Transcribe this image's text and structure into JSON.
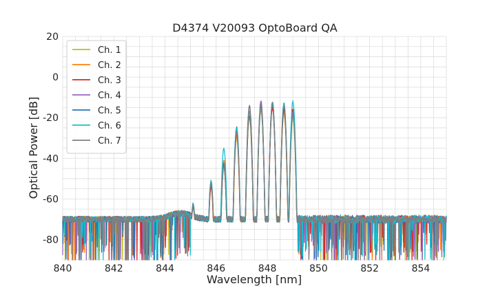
{
  "chart_data": {
    "type": "line",
    "title": "D4374 V20093 OptoBoard QA",
    "xlabel": "Wavelength [nm]",
    "ylabel": "Optical Power [dB]",
    "xlim": [
      840,
      855
    ],
    "ylim": [
      -90,
      20
    ],
    "xticks": [
      840,
      842,
      844,
      846,
      848,
      850,
      852,
      854
    ],
    "yticks": [
      -80,
      -60,
      -40,
      -20,
      0,
      20
    ],
    "grid": true,
    "legend_position": "top-left",
    "noise_floor": -70,
    "series": [
      {
        "name": "Ch. 1",
        "color": "#bcbd22",
        "peaks": [
          [
            845.1,
            -63
          ],
          [
            845.8,
            -53
          ],
          [
            846.3,
            -44
          ],
          [
            846.8,
            -30
          ],
          [
            847.3,
            -20
          ],
          [
            847.75,
            -16
          ],
          [
            848.2,
            -14
          ],
          [
            848.65,
            -18
          ],
          [
            849.0,
            -20
          ]
        ]
      },
      {
        "name": "Ch. 2",
        "color": "#ff7f0e",
        "peaks": [
          [
            845.1,
            -64
          ],
          [
            845.8,
            -55
          ],
          [
            846.3,
            -41
          ],
          [
            846.8,
            -29
          ],
          [
            847.3,
            -19
          ],
          [
            847.75,
            -16
          ],
          [
            848.2,
            -15
          ],
          [
            848.65,
            -17
          ],
          [
            849.0,
            -16
          ]
        ]
      },
      {
        "name": "Ch. 3",
        "color": "#d62728",
        "peaks": [
          [
            845.1,
            -64
          ],
          [
            845.8,
            -54
          ],
          [
            846.3,
            -44
          ],
          [
            846.8,
            -28
          ],
          [
            847.3,
            -19
          ],
          [
            847.75,
            -15
          ],
          [
            848.2,
            -15
          ],
          [
            848.65,
            -16
          ],
          [
            849.0,
            -16
          ]
        ]
      },
      {
        "name": "Ch. 4",
        "color": "#9467bd",
        "peaks": [
          [
            845.1,
            -63
          ],
          [
            845.8,
            -53
          ],
          [
            846.3,
            -43
          ],
          [
            846.8,
            -27
          ],
          [
            847.3,
            -14
          ],
          [
            847.75,
            -12
          ],
          [
            848.2,
            -13
          ],
          [
            848.65,
            -14
          ],
          [
            849.0,
            -17
          ]
        ]
      },
      {
        "name": "Ch. 5",
        "color": "#1f77b4",
        "peaks": [
          [
            845.1,
            -63
          ],
          [
            845.8,
            -52
          ],
          [
            846.3,
            -43
          ],
          [
            846.8,
            -25
          ],
          [
            847.3,
            -17
          ],
          [
            847.75,
            -14
          ],
          [
            848.2,
            -13
          ],
          [
            848.65,
            -15
          ],
          [
            849.0,
            -18
          ]
        ]
      },
      {
        "name": "Ch. 6",
        "color": "#17becf",
        "peaks": [
          [
            845.1,
            -62
          ],
          [
            845.8,
            -51
          ],
          [
            846.3,
            -35
          ],
          [
            846.8,
            -25
          ],
          [
            847.3,
            -17
          ],
          [
            847.75,
            -15
          ],
          [
            848.2,
            -13
          ],
          [
            848.65,
            -13
          ],
          [
            849.0,
            -12
          ]
        ]
      },
      {
        "name": "Ch. 7",
        "color": "#7f7f7f",
        "peaks": [
          [
            845.1,
            -63
          ],
          [
            845.8,
            -52
          ],
          [
            846.3,
            -44
          ],
          [
            846.8,
            -27
          ],
          [
            847.3,
            -15
          ],
          [
            847.75,
            -13
          ],
          [
            848.2,
            -12
          ],
          [
            848.65,
            -14
          ],
          [
            849.0,
            -19
          ]
        ]
      }
    ]
  }
}
